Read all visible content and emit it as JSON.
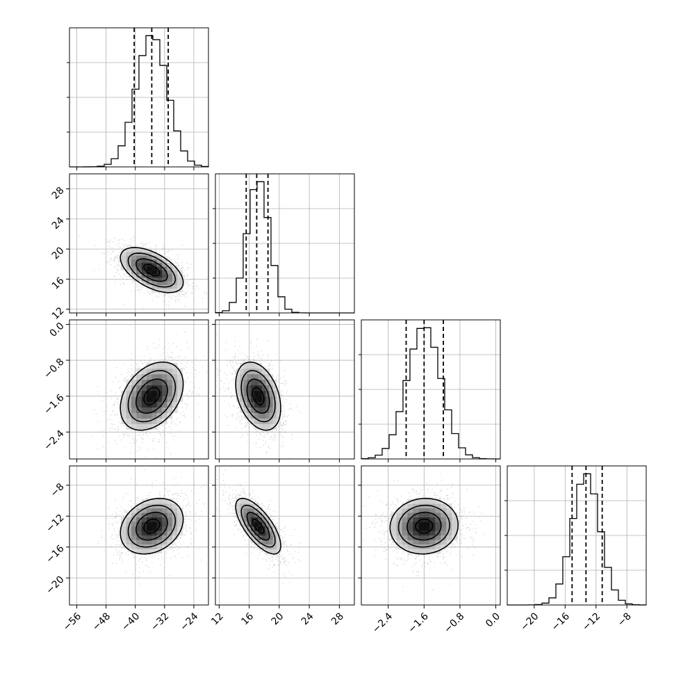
{
  "chart_data": {
    "type": "corner",
    "description_of_layout": "lower-triangle corner plot of 4 parameters: 1-D histograms on the diagonal with dashed quantile lines, 2-D density/contour panels below",
    "grid": true,
    "params": [
      {
        "range": [
          -58,
          -20
        ],
        "ticks": [
          -56,
          -48,
          -40,
          -32,
          -24
        ],
        "tick_labels": [
          "−56",
          "−48",
          "−40",
          "−32",
          "−24"
        ],
        "mean": -35.5,
        "sd": 4.3,
        "quantiles": [
          -40.3,
          -35.5,
          -31.0
        ]
      },
      {
        "range": [
          11.5,
          30.0
        ],
        "ticks": [
          12,
          16,
          20,
          24,
          28
        ],
        "tick_labels": [
          "12",
          "16",
          "20",
          "24",
          "28"
        ],
        "mean": 17.2,
        "sd": 1.5,
        "quantiles": [
          15.6,
          17.0,
          18.5
        ]
      },
      {
        "range": [
          -3.0,
          0.1
        ],
        "ticks": [
          -2.4,
          -1.6,
          -0.8,
          0.0
        ],
        "tick_labels": [
          "−2.4",
          "−1.6",
          "−0.8",
          "0.0"
        ],
        "mean": -1.6,
        "sd": 0.38,
        "quantiles": [
          -2.0,
          -1.6,
          -1.17
        ]
      },
      {
        "range": [
          -23.5,
          -5.5
        ],
        "ticks": [
          -20,
          -16,
          -12,
          -8
        ],
        "tick_labels": [
          "−20",
          "−16",
          "−12",
          "−8"
        ],
        "mean": -13.3,
        "sd": 1.8,
        "quantiles": [
          -15.1,
          -13.3,
          -11.2
        ]
      }
    ],
    "correlations": {
      "1-0": -0.55,
      "2-0": 0.35,
      "2-1": -0.35,
      "3-0": 0.25,
      "3-1": -0.7,
      "3-2": 0.05
    },
    "contour_levels_sigma": [
      0.5,
      1.0,
      1.5,
      2.0
    ],
    "colors": {
      "axes": "#000000",
      "grid": "#b0b0b0",
      "points": "#9a9a9a"
    }
  }
}
